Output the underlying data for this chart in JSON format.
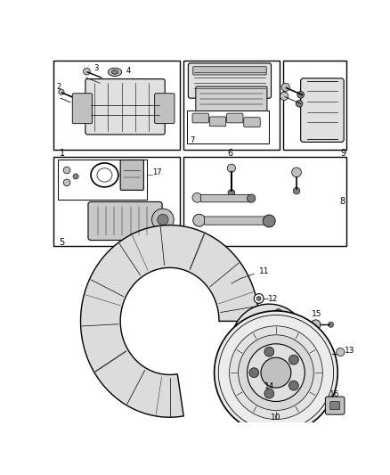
{
  "background_color": "#ffffff",
  "line_color": "#000000",
  "gray_light": "#e0e0e0",
  "gray_mid": "#c0c0c0",
  "gray_dark": "#808080"
}
